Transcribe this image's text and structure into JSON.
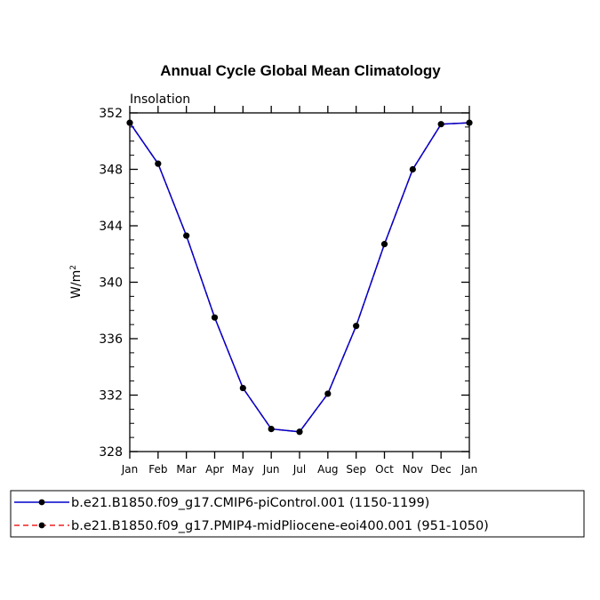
{
  "chart_data": {
    "type": "line",
    "title": "Annual Cycle Global Mean Climatology",
    "subtitle": "Insolation",
    "ylabel": "W/m",
    "ylabel_sup": "2",
    "xlabel": "",
    "ylim": [
      328,
      352
    ],
    "y_ticks": [
      328,
      332,
      336,
      340,
      344,
      348,
      352
    ],
    "y_tick_labels": [
      "328",
      "332",
      "336",
      "340",
      "344",
      "348",
      "352"
    ],
    "categories": [
      "Jan",
      "Feb",
      "Mar",
      "Apr",
      "May",
      "Jun",
      "Jul",
      "Aug",
      "Sep",
      "Oct",
      "Nov",
      "Dec",
      "Jan"
    ],
    "legend_position": "bottom",
    "series": [
      {
        "name": "b.e21.B1850.f09_g17.CMIP6-piControl.001 (1150-1199)",
        "color": "#0000cc",
        "style": "solid",
        "values": [
          351.3,
          348.4,
          343.3,
          337.5,
          332.5,
          329.6,
          329.4,
          332.1,
          336.9,
          342.7,
          348.0,
          351.2,
          351.3
        ]
      },
      {
        "name": "b.e21.B1850.f09_g17.PMIP4-midPliocene-eoi400.001 (951-1050)",
        "color": "#ee2222",
        "style": "dashed",
        "values": [
          351.3,
          348.4,
          343.3,
          337.5,
          332.5,
          329.6,
          329.4,
          332.1,
          336.9,
          342.7,
          348.0,
          351.2,
          351.3
        ]
      }
    ]
  }
}
